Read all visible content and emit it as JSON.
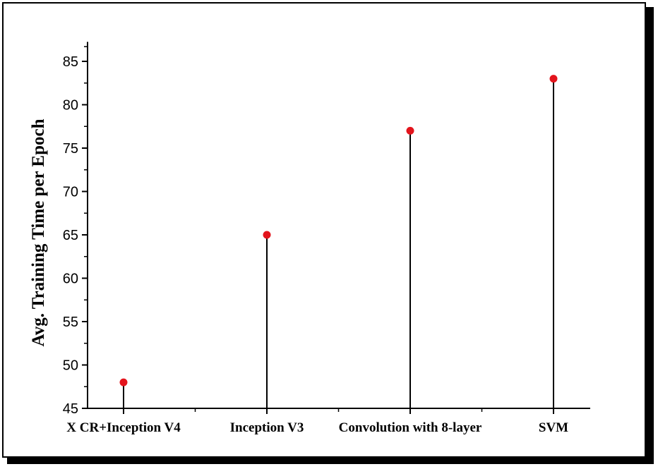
{
  "chart_data": {
    "type": "scatter",
    "style": "stem",
    "categories": [
      "X CR+Inception V4",
      "Inception V3",
      "Convolution with 8-layer",
      "SVM"
    ],
    "values": [
      48,
      65,
      77,
      83
    ],
    "title": "",
    "xlabel": "",
    "ylabel": "Avg. Training Time per Epoch",
    "ylim": [
      45,
      87
    ],
    "yticks": [
      45,
      50,
      55,
      60,
      65,
      70,
      75,
      80,
      85
    ],
    "grid": false,
    "marker_color": "#e3141c",
    "stem_color": "#000000"
  }
}
